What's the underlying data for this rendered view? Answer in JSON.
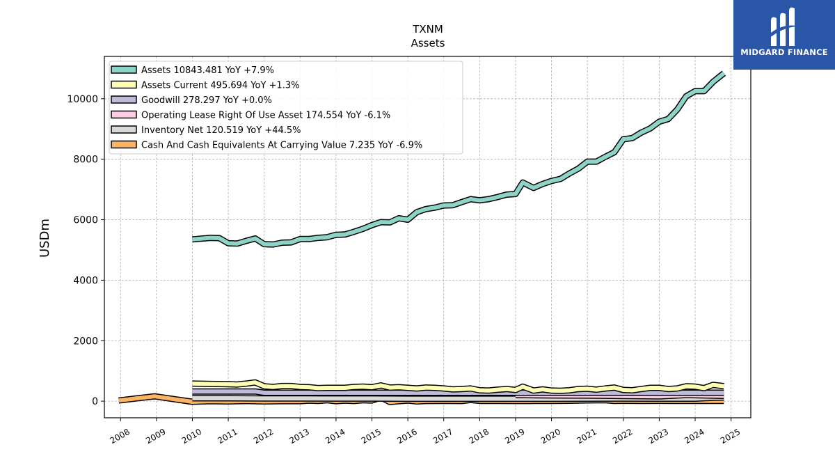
{
  "brand": {
    "name": "MIDGARD FINANCE",
    "bg_color": "#2a56a8",
    "icon": "midgard-logo-icon"
  },
  "chart_data": {
    "type": "line",
    "title": "TXNM",
    "subtitle": "Assets",
    "xlabel": "",
    "ylabel": "USDm",
    "xlim": [
      2007.55,
      2025.55
    ],
    "ylim": [
      -550,
      11400
    ],
    "yticks": [
      0,
      2000,
      4000,
      6000,
      8000,
      10000
    ],
    "xticks": [
      2008,
      2009,
      2010,
      2011,
      2012,
      2013,
      2014,
      2015,
      2016,
      2017,
      2018,
      2019,
      2020,
      2021,
      2022,
      2023,
      2024,
      2025
    ],
    "grid": true,
    "legend_position": "top-left",
    "series": [
      {
        "name": "Assets",
        "legend": "Assets  10843.481 YoY +7.9%",
        "color": "#8dd3c7",
        "x": [
          2010.0,
          2010.5,
          2010.75,
          2011.0,
          2011.25,
          2011.5,
          2011.75,
          2012.0,
          2012.25,
          2012.5,
          2012.75,
          2013.0,
          2013.25,
          2013.5,
          2013.75,
          2014.0,
          2014.25,
          2014.5,
          2014.75,
          2015.0,
          2015.25,
          2015.5,
          2015.75,
          2016.0,
          2016.25,
          2016.5,
          2016.75,
          2017.0,
          2017.25,
          2017.5,
          2017.75,
          2018.0,
          2018.25,
          2018.5,
          2018.75,
          2019.0,
          2019.2,
          2019.5,
          2019.75,
          2020.0,
          2020.25,
          2020.5,
          2020.75,
          2021.0,
          2021.25,
          2021.5,
          2021.75,
          2022.0,
          2022.25,
          2022.5,
          2022.75,
          2023.0,
          2023.25,
          2023.5,
          2023.75,
          2024.0,
          2024.25,
          2024.5,
          2024.8
        ],
        "y": [
          5350,
          5400,
          5390,
          5220,
          5210,
          5300,
          5380,
          5190,
          5180,
          5240,
          5250,
          5360,
          5360,
          5400,
          5420,
          5500,
          5510,
          5600,
          5700,
          5820,
          5920,
          5910,
          6050,
          6000,
          6250,
          6350,
          6400,
          6470,
          6480,
          6580,
          6680,
          6640,
          6680,
          6750,
          6830,
          6850,
          7230,
          7050,
          7180,
          7280,
          7350,
          7530,
          7690,
          7920,
          7920,
          8080,
          8230,
          8660,
          8700,
          8880,
          9020,
          9240,
          9330,
          9640,
          10080,
          10250,
          10250,
          10560,
          10843
        ]
      },
      {
        "name": "Assets Current",
        "legend": "Assets Current  495.694 YoY +1.3%",
        "color": "#ffffb3",
        "x": [
          2010.0,
          2010.5,
          2011.0,
          2011.25,
          2011.5,
          2011.75,
          2012.0,
          2012.25,
          2012.5,
          2012.75,
          2013.0,
          2013.25,
          2013.5,
          2013.75,
          2014.0,
          2014.25,
          2014.5,
          2014.75,
          2015.0,
          2015.25,
          2015.5,
          2015.75,
          2016.0,
          2016.25,
          2016.5,
          2016.75,
          2017.0,
          2017.25,
          2017.5,
          2017.75,
          2018.0,
          2018.25,
          2018.5,
          2018.75,
          2019.0,
          2019.2,
          2019.5,
          2019.75,
          2020.0,
          2020.25,
          2020.5,
          2020.75,
          2021.0,
          2021.25,
          2021.5,
          2021.75,
          2022.0,
          2022.25,
          2022.5,
          2022.75,
          2023.0,
          2023.25,
          2023.5,
          2023.75,
          2024.0,
          2024.25,
          2024.5,
          2024.8
        ],
        "y": [
          580,
          570,
          560,
          550,
          580,
          620,
          490,
          470,
          500,
          500,
          470,
          460,
          430,
          440,
          440,
          440,
          470,
          480,
          460,
          520,
          450,
          460,
          440,
          420,
          450,
          440,
          420,
          390,
          400,
          420,
          360,
          350,
          380,
          400,
          370,
          480,
          350,
          390,
          350,
          340,
          360,
          400,
          410,
          380,
          420,
          450,
          370,
          360,
          400,
          440,
          440,
          400,
          420,
          490,
          480,
          430,
          540,
          496
        ]
      },
      {
        "name": "Goodwill",
        "legend": "Goodwill  278.297 YoY +0.0%",
        "color": "#bebada",
        "x": [
          2010.0,
          2011.75,
          2012.0,
          2024.8
        ],
        "y": [
          320,
          320,
          278,
          278
        ]
      },
      {
        "name": "Operating Lease Right Of Use Asset",
        "legend": "Operating Lease Right Of Use Asset  174.554 YoY -6.1%",
        "color": "#fccde5",
        "x": [
          2019.0,
          2020.0,
          2021.0,
          2022.0,
          2023.0,
          2023.75,
          2024.0,
          2024.8
        ],
        "y": [
          200,
          190,
          185,
          170,
          160,
          200,
          195,
          175
        ]
      },
      {
        "name": "Inventory Net",
        "legend": "Inventory Net  120.519 YoY +44.5%",
        "color": "#d9d9d9",
        "x": [
          2010.0,
          2011.0,
          2012.0,
          2013.0,
          2014.0,
          2015.0,
          2016.0,
          2017.0,
          2018.0,
          2019.0,
          2020.0,
          2021.0,
          2022.0,
          2023.0,
          2023.75,
          2024.0,
          2024.5,
          2024.8
        ],
        "y": [
          95,
          95,
          90,
          90,
          85,
          85,
          80,
          80,
          80,
          80,
          82,
          84,
          85,
          83,
          84,
          83,
          110,
          121
        ]
      },
      {
        "name": "Cash And Cash Equivalents At Carrying Value",
        "legend": "Cash And Cash Equivalents At Carrying Value  7.235 YoY -6.9%",
        "color": "#fdb462",
        "x": [
          2007.95,
          2008.5,
          2008.95,
          2010.0,
          2010.5,
          2011.0,
          2011.5,
          2012.0,
          2012.5,
          2013.0,
          2013.25,
          2013.5,
          2013.75,
          2014.0,
          2014.25,
          2014.5,
          2014.75,
          2015.0,
          2015.25,
          2015.5,
          2015.75,
          2016.0,
          2016.25,
          2016.5,
          2017.0,
          2017.5,
          2017.75,
          2018.0,
          2018.5,
          2019.0,
          2019.5,
          2020.0,
          2020.5,
          2021.0,
          2021.5,
          2021.75,
          2022.0,
          2022.5,
          2023.0,
          2023.5,
          2024.0,
          2024.5,
          2024.8
        ],
        "y": [
          20,
          100,
          160,
          -20,
          0,
          -10,
          5,
          -10,
          0,
          0,
          20,
          10,
          30,
          0,
          20,
          5,
          30,
          20,
          120,
          -30,
          0,
          20,
          -10,
          5,
          10,
          5,
          40,
          10,
          8,
          5,
          8,
          10,
          15,
          25,
          30,
          10,
          15,
          10,
          12,
          10,
          10,
          8,
          7
        ]
      }
    ]
  }
}
